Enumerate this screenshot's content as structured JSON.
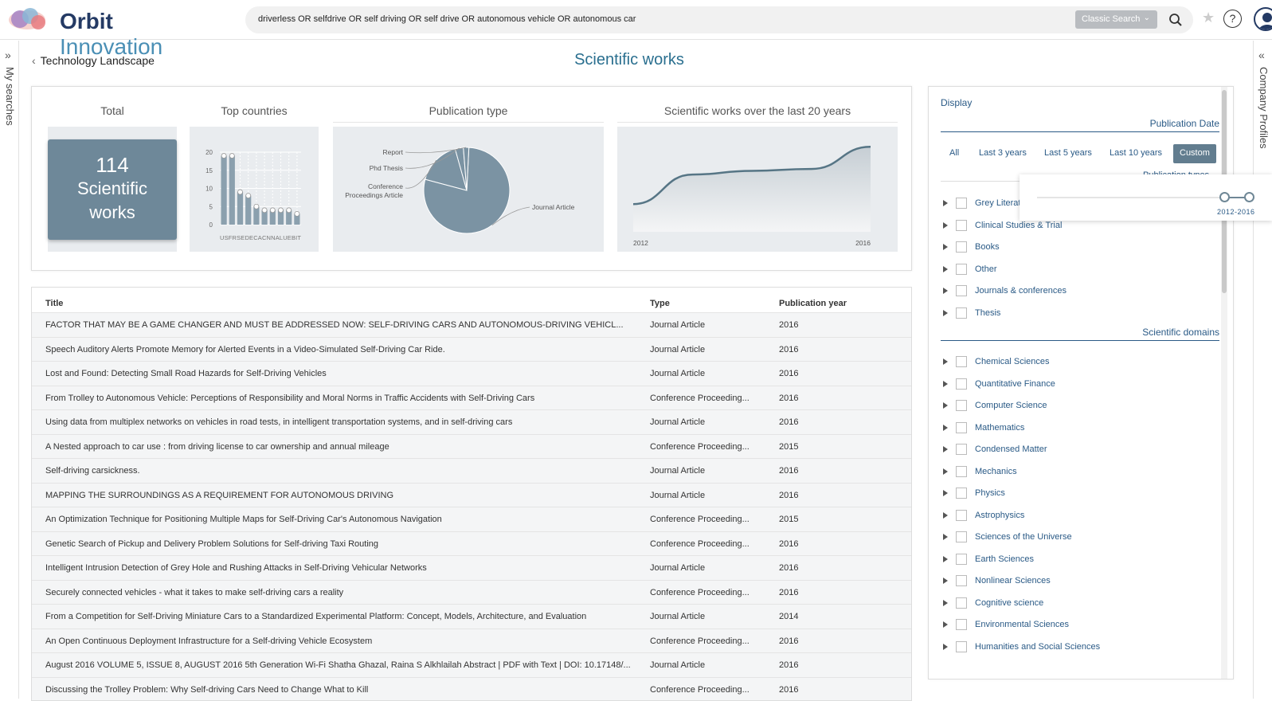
{
  "app": {
    "brand_bold": "Orbit",
    "brand_light": " Innovation",
    "search_query": "driverless OR selfdrive OR self driving OR self drive OR autonomous vehicle OR autonomous car",
    "search_mode": "Classic Search",
    "help_glyph": "?"
  },
  "rails": {
    "left_label": "My searches",
    "right_label": "Company Profiles"
  },
  "breadcrumb": {
    "back_label": "Technology Landscape"
  },
  "page_title": "Scientific works",
  "summary": {
    "total_heading": "Total",
    "total_count": "114",
    "total_line1": "Scientific",
    "total_line2": "works",
    "countries_heading": "Top countries",
    "pubtype_heading": "Publication type",
    "trend_heading": "Scientific works over the last 20 years",
    "countries_tick_row": "USFRSEDECACNNALUEBIT",
    "trend_x_start": "2012",
    "trend_x_end": "2016"
  },
  "chart_data": [
    {
      "type": "bar",
      "title": "Top countries",
      "categories": [
        "US",
        "FR",
        "SE",
        "DE",
        "CA",
        "CN",
        "NL",
        "AU",
        "BE",
        "IT"
      ],
      "values": [
        19,
        19,
        9,
        8,
        5,
        4,
        4,
        4,
        4,
        3
      ],
      "ylim": [
        0,
        20
      ],
      "yticks": [
        0,
        5,
        10,
        15,
        20
      ],
      "colors": {
        "bar": "#8ba0ae"
      }
    },
    {
      "type": "pie",
      "title": "Publication type",
      "labels": [
        "Journal Article",
        "Conference Proceedings Article",
        "Phd Thesis",
        "Report"
      ],
      "values": [
        76,
        16,
        3,
        2
      ],
      "colors": {
        "slice": "#7b93a3",
        "outline": "#ffffff"
      }
    },
    {
      "type": "area",
      "title": "Scientific works over the last 20 years",
      "x": [
        2012,
        2013,
        2014,
        2015,
        2016
      ],
      "values": [
        0.3,
        0.62,
        0.66,
        0.68,
        0.92
      ],
      "colors": {
        "line": "#567585"
      }
    }
  ],
  "table": {
    "headers": {
      "title": "Title",
      "type": "Type",
      "year": "Publication year"
    },
    "rows": [
      {
        "title": "FACTOR THAT MAY BE A GAME CHANGER AND MUST BE ADDRESSED NOW: SELF-DRIVING CARS AND AUTONOMOUS-DRIVING VEHICL...",
        "type": "Journal Article",
        "year": "2016"
      },
      {
        "title": "Speech Auditory Alerts Promote Memory for Alerted Events in a Video-Simulated Self-Driving Car Ride.",
        "type": "Journal Article",
        "year": "2016"
      },
      {
        "title": "Lost and Found: Detecting Small Road Hazards for Self-Driving Vehicles",
        "type": "Journal Article",
        "year": "2016"
      },
      {
        "title": "From Trolley to Autonomous Vehicle: Perceptions of Responsibility and Moral Norms in Traffic Accidents with Self-Driving Cars",
        "type": "Conference Proceeding...",
        "year": "2016"
      },
      {
        "title": "Using data from multiplex networks on vehicles in road tests, in intelligent transportation systems, and in self-driving cars",
        "type": "Journal Article",
        "year": "2016"
      },
      {
        "title": "A Nested approach to car use : from driving license to car ownership and annual mileage",
        "type": "Conference Proceeding...",
        "year": "2015"
      },
      {
        "title": "Self-driving carsickness.",
        "type": "Journal Article",
        "year": "2016"
      },
      {
        "title": "MAPPING THE SURROUNDINGS AS A REQUIREMENT FOR AUTONOMOUS DRIVING",
        "type": "Journal Article",
        "year": "2016"
      },
      {
        "title": "An Optimization Technique for Positioning Multiple Maps for Self-Driving Car's Autonomous Navigation",
        "type": "Conference Proceeding...",
        "year": "2015"
      },
      {
        "title": "Genetic Search of Pickup and Delivery Problem Solutions for Self-driving Taxi Routing",
        "type": "Conference Proceeding...",
        "year": "2016"
      },
      {
        "title": "Intelligent Intrusion Detection of Grey Hole and Rushing Attacks in Self-Driving Vehicular Networks",
        "type": "Journal Article",
        "year": "2016"
      },
      {
        "title": "Securely connected vehicles - what it takes to make self-driving cars a reality",
        "type": "Conference Proceeding...",
        "year": "2016"
      },
      {
        "title": "From a Competition for Self-Driving Miniature Cars to a Standardized Experimental Platform: Concept, Models, Architecture, and Evaluation",
        "type": "Journal Article",
        "year": "2014"
      },
      {
        "title": "An Open Continuous Deployment Infrastructure for a Self-driving Vehicle Ecosystem",
        "type": "Conference Proceeding...",
        "year": "2016"
      },
      {
        "title": "August 2016 VOLUME 5, ISSUE 8, AUGUST 2016 5th Generation Wi-Fi Shatha Ghazal, Raina S Alkhlailah Abstract | PDF with Text | DOI: 10.17148/...",
        "type": "Journal Article",
        "year": "2016"
      },
      {
        "title": "Discussing the Trolley Problem: Why Self-driving Cars Need to Change What to Kill",
        "type": "Conference Proceeding...",
        "year": "2016"
      }
    ]
  },
  "filters": {
    "display_label": "Display",
    "pubdate_label": "Publication Date",
    "date_tabs": [
      "All",
      "Last 3 years",
      "Last 5 years",
      "Last 10 years",
      "Custom"
    ],
    "pubtypes_label": "Publication types",
    "pubtypes": [
      "Grey Literature",
      "Clinical Studies & Trial",
      "Books",
      "Other",
      "Journals & conferences",
      "Thesis"
    ],
    "domains_label": "Scientific domains",
    "domains": [
      "Chemical Sciences",
      "Quantitative Finance",
      "Computer Science",
      "Mathematics",
      "Condensed Matter",
      "Mechanics",
      "Physics",
      "Astrophysics",
      "Sciences of the Universe",
      "Earth Sciences",
      "Nonlinear Sciences",
      "Cognitive science",
      "Environmental Sciences",
      "Humanities and Social Sciences"
    ],
    "slider_range_label": "2012-2016"
  }
}
